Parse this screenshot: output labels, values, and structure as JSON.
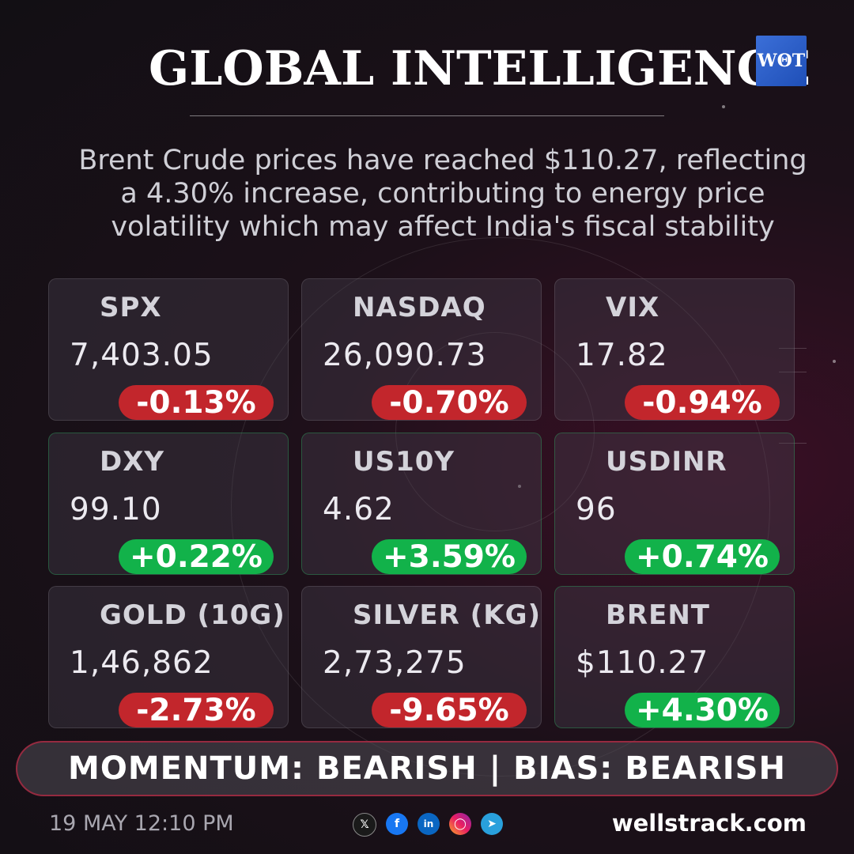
{
  "header": {
    "title": "GLOBAL INTELLIGENCE",
    "logo_text": "WΘT"
  },
  "headline": {
    "line1": "Brent Crude prices have reached $110.27, reflecting",
    "line2": "a 4.30% increase, contributing to energy price",
    "line3": "volatility which may affect India's fiscal stability"
  },
  "tickers": [
    {
      "symbol": "SPX",
      "value": "7,403.05",
      "change": "-0.13%",
      "direction": "down"
    },
    {
      "symbol": "NASDAQ",
      "value": "26,090.73",
      "change": "-0.70%",
      "direction": "down"
    },
    {
      "symbol": "VIX",
      "value": "17.82",
      "change": "-0.94%",
      "direction": "down"
    },
    {
      "symbol": "DXY",
      "value": "99.10",
      "change": "+0.22%",
      "direction": "up"
    },
    {
      "symbol": "US10Y",
      "value": "4.62",
      "change": "+3.59%",
      "direction": "up"
    },
    {
      "symbol": "USDINR",
      "value": "96",
      "change": "+0.74%",
      "direction": "up"
    },
    {
      "symbol": "GOLD (10G)",
      "value": "1,46,862",
      "change": "-2.73%",
      "direction": "down"
    },
    {
      "symbol": "SILVER (KG)",
      "value": "2,73,275",
      "change": "-9.65%",
      "direction": "down"
    },
    {
      "symbol": "BRENT",
      "value": "$110.27",
      "change": "+4.30%",
      "direction": "up"
    }
  ],
  "momentum": {
    "text": "MOMENTUM: BEARISH | BIAS: BEARISH"
  },
  "footer": {
    "timestamp": "19 MAY 12:10 PM",
    "website": "wellstrack.com",
    "social_icons": [
      "x-icon",
      "facebook-icon",
      "linkedin-icon",
      "instagram-icon",
      "telegram-icon"
    ]
  },
  "colors": {
    "down": "#c2262c",
    "up": "#12b24a",
    "logo": "#2a5ccc",
    "momentum_border": "#d72846"
  }
}
